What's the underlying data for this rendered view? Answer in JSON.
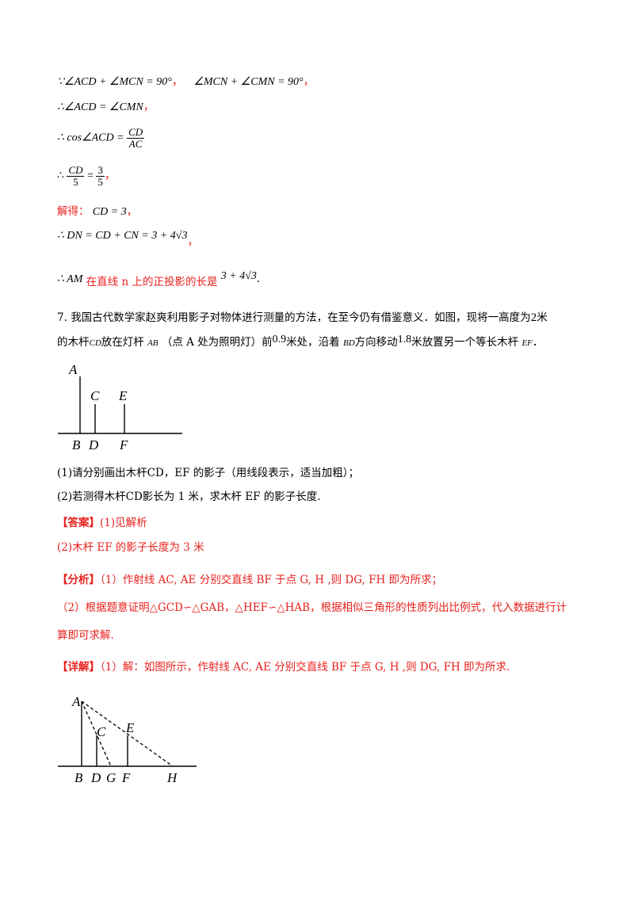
{
  "solution": {
    "line1_a": "∵∠ACD + ∠MCN = 90°",
    "line1_sep": "，",
    "line1_b": "∠MCN + ∠CMN = 90°",
    "line1_end": "，",
    "line2": "∴∠ACD = ∠CMN",
    "line2_end": "，",
    "line3_pre": "∴ cos∠ACD =",
    "line3_num": "CD",
    "line3_den": "AC",
    "line4_pre": "∴",
    "line4_num1": "CD",
    "line4_den1": "5",
    "line4_eq": "=",
    "line4_num2": "3",
    "line4_den2": "5",
    "line4_end": "，",
    "line5_label": "解得：",
    "line5_expr": "CD = 3",
    "line5_end": "，",
    "line6": "∴ DN = CD + CN = 3 + 4√3",
    "line6_end": "，",
    "line7_pre": "∴ AM",
    "line7_text": "在直线 n 上的正投影的长是",
    "line7_val": "3 + 4√3",
    "line7_end": "."
  },
  "problem": {
    "number": "7.",
    "text1": "我国古代数学家赵爽利用影子对物体进行测量的方法，在至今仍有借鉴意义．如图，现将一高度为",
    "height": "2",
    "text1_end": "米",
    "text2a": "的木杆",
    "cd": "CD",
    "text2b": "放在灯杆",
    "ab": "AB",
    "text2c": "（点 A 处为照明灯）前",
    "dist1": "0.9",
    "text2d": "米处，沿着",
    "bd": "BD",
    "text2e": "方向移动",
    "dist2": "1.8",
    "text2f": "米放置另一个等长木杆",
    "ef": "EF",
    "text2g": "．",
    "q1": "(1)请分别画出木杆CD，EF 的影子（用线段表示，适当加粗）；",
    "q2": "(2)若测得木杆CD影长为 1 米，求木杆 EF 的影子长度."
  },
  "answer": {
    "tag": "【答案】",
    "a1": "(1)见解析",
    "a2": "(2)木杆 EF 的影子长度为 3 米"
  },
  "analysis": {
    "tag": "【分析】",
    "p1": "（1）作射线 AC, AE 分别交直线 BF 于点 G, H ,则 DG, FH 即为所求；",
    "p2a": "（2）根据题意证明△GCD∽△GAB，△HEF∽△HAB，根据相似三角形的性质列出比例式，代入数据进行计",
    "p2b": "算即可求解."
  },
  "detail": {
    "tag": "【详解】",
    "p1": "（1）解：如图所示，作射线 AC, AE 分别交直线 BF 于点 G, H ,则 DG, FH 即为所求."
  },
  "figure1": {
    "labels": [
      "A",
      "C",
      "E",
      "B",
      "D",
      "F"
    ]
  },
  "figure2": {
    "labels": [
      "A",
      "C",
      "E",
      "B",
      "D",
      "G",
      "F",
      "H"
    ]
  },
  "colors": {
    "accent": "#e8211d",
    "text": "#000000"
  }
}
